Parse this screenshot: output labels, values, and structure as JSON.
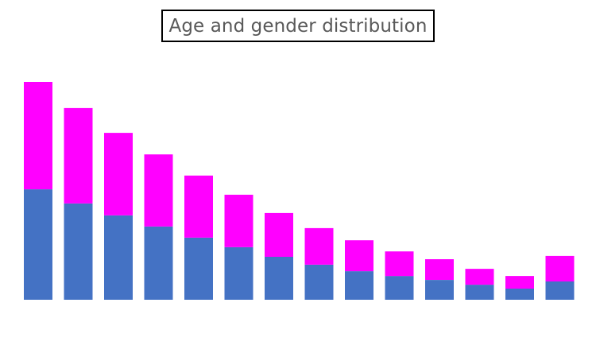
{
  "chart_data": {
    "type": "bar",
    "stacked": true,
    "title": "Age and gender distribution",
    "xlabel": "",
    "ylabel": "",
    "grid": false,
    "legend": "none",
    "ylim": [
      0,
      100
    ],
    "categories": [
      "",
      "",
      "",
      "",
      "",
      "",
      "",
      "",
      "",
      "",
      "",
      "",
      "",
      ""
    ],
    "series": [
      {
        "color": "#4472C4",
        "values": [
          50.7,
          44.2,
          38.7,
          33.6,
          28.5,
          24.1,
          19.7,
          16.1,
          13.1,
          10.9,
          9.1,
          6.9,
          5.1,
          8.4
        ]
      },
      {
        "color": "#FF00FF",
        "values": [
          49.3,
          43.8,
          37.9,
          33.1,
          28.5,
          24.1,
          20.1,
          16.8,
          14.2,
          11.3,
          9.5,
          7.3,
          5.8,
          11.7
        ]
      }
    ]
  }
}
